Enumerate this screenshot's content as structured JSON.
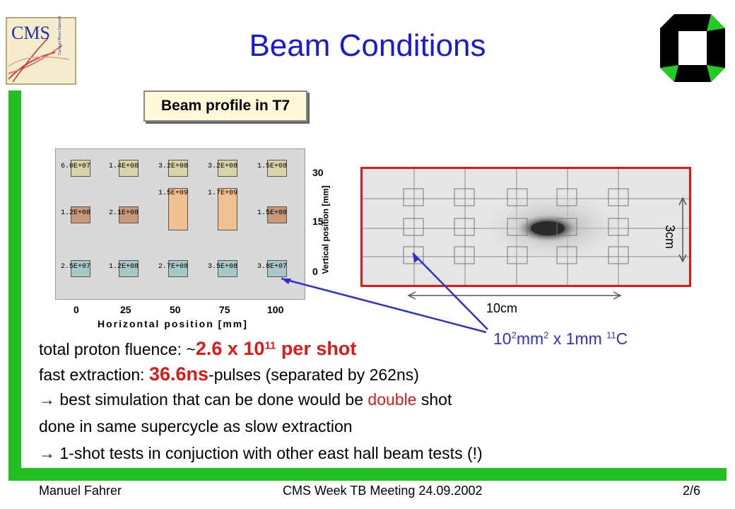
{
  "header": {
    "title": "Beam Conditions"
  },
  "logos": {
    "cms_text": "CMS",
    "cms_subtext": "Compact Muon Solenoid"
  },
  "plot": {
    "title": "Beam profile in T7",
    "xlabel": "Horizontal position [mm]",
    "ylabel": "Vertical position [mm]",
    "x_ticks": [
      "0",
      "25",
      "50",
      "75",
      "100"
    ],
    "y_ticks": [
      "30",
      "15",
      "0"
    ],
    "rows": [
      [
        "6.0E+07",
        "1.4E+08",
        "3.2E+08",
        "3.2E+08",
        "1.5E+08"
      ],
      [
        "1.2E+08",
        "2.1E+08",
        "1.5E+09",
        "1.7E+09",
        "1.5E+08"
      ],
      [
        "2.5E+07",
        "1.2E+08",
        "2.7E+08",
        "3.5E+08",
        "3.8E+07"
      ]
    ]
  },
  "film": {
    "width_label": "10cm",
    "height_label": "3cm",
    "sample_label_parts": [
      "10",
      "2",
      "mm",
      "2",
      " x 1mm ",
      "11",
      "C"
    ]
  },
  "body": {
    "line1_prefix": "total proton fluence: ~",
    "line1_value": "2.6 x 10",
    "line1_exp": "11",
    "line1_suffix": " per shot",
    "line2_prefix": "fast extraction: ",
    "line2_value": "36.6ns",
    "line2_suffix": "-pulses (separated by 262ns)",
    "line3_prefix": " best simulation that can be done would be ",
    "line3_red": "double",
    "line3_suffix": " shot",
    "line4": "done in same supercycle as slow extraction",
    "line5": " 1-shot tests in conjuction with other east hall beam tests (!)"
  },
  "footer": {
    "author": "Manuel Fahrer",
    "event": "CMS Week TB Meeting 24.09.2002",
    "page": "2/6"
  },
  "colors": {
    "title": "#1a1ad6",
    "accent_green": "#22c022",
    "highlight_red": "#e01818",
    "arrow_blue": "#3030d0"
  }
}
